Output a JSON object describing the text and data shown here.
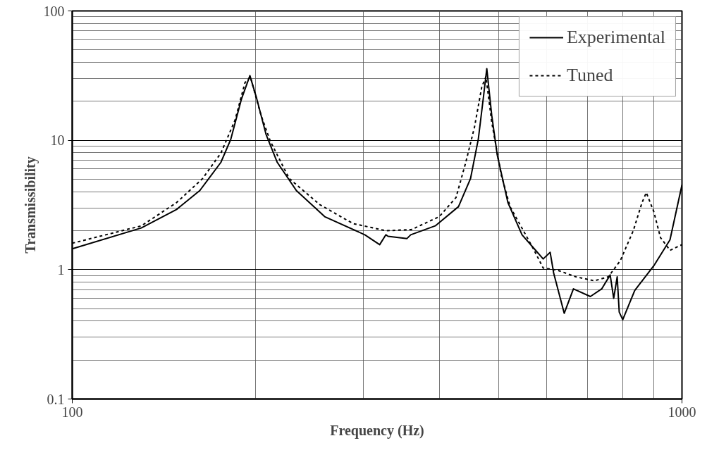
{
  "chart_data": {
    "type": "line",
    "xlabel": "Frequency (Hz)",
    "ylabel": "Transmissibility",
    "log": "xy",
    "grid": true,
    "legend": "top right",
    "marker": "none",
    "xlim": [
      100,
      1000
    ],
    "ylim": [
      0.1,
      100
    ],
    "xticks": [
      100,
      {
        "value": 200,
        "label": null
      },
      {
        "value": 300,
        "label": null
      },
      {
        "value": 400,
        "label": null
      },
      {
        "value": 500,
        "label": null
      },
      {
        "value": 600,
        "label": null
      },
      {
        "value": 700,
        "label": null
      },
      {
        "value": 800,
        "label": null
      },
      {
        "value": 900,
        "label": null
      },
      1000
    ],
    "yticks": [
      0.1,
      {
        "value": 0.2,
        "label": null
      },
      {
        "value": 0.3,
        "label": null
      },
      {
        "value": 0.4,
        "label": null
      },
      {
        "value": 0.5,
        "label": null
      },
      {
        "value": 0.6,
        "label": null
      },
      {
        "value": 0.7,
        "label": null
      },
      {
        "value": 0.8,
        "label": null
      },
      {
        "value": 0.9,
        "label": null
      },
      1,
      {
        "value": 2,
        "label": null
      },
      {
        "value": 3,
        "label": null
      },
      {
        "value": 4,
        "label": null
      },
      {
        "value": 5,
        "label": null
      },
      {
        "value": 6,
        "label": null
      },
      {
        "value": 7,
        "label": null
      },
      {
        "value": 8,
        "label": null
      },
      {
        "value": 9,
        "label": null
      },
      10,
      {
        "value": 20,
        "label": null
      },
      {
        "value": 30,
        "label": null
      },
      {
        "value": 40,
        "label": null
      },
      {
        "value": 50,
        "label": null
      },
      {
        "value": 60,
        "label": null
      },
      {
        "value": 70,
        "label": null
      },
      {
        "value": 80,
        "label": null
      },
      {
        "value": 90,
        "label": null
      },
      100
    ],
    "series": [
      {
        "name": "Experimental",
        "color": "#000000",
        "line_style": "solid",
        "x": [
          100,
          129.8,
          148.3,
          161.9,
          175.3,
          182,
          189.5,
          195.6,
          200.3,
          207.9,
          216.9,
          233.1,
          259.4,
          301.9,
          319.3,
          326.9,
          329.6,
          354,
          359,
          393.9,
          430,
          450,
          463.4,
          472.1,
          478.5,
          487.5,
          497.9,
          518.2,
          546.6,
          592,
          607.9,
          616,
          641,
          663.7,
          707.5,
          738.4,
          762.5,
          772.7,
          783,
          789,
          799.6,
          836.6,
          898.9,
          955.7,
          1000
        ],
        "values": [
          1.45,
          2.1,
          2.92,
          4.09,
          6.75,
          10.2,
          20.9,
          31.6,
          21.7,
          11.1,
          6.75,
          4.09,
          2.57,
          1.86,
          1.56,
          1.86,
          1.81,
          1.74,
          1.86,
          2.18,
          3.07,
          5.06,
          10.2,
          20.9,
          35.8,
          15.6,
          7.65,
          3.3,
          1.86,
          1.21,
          1.36,
          0.94,
          0.46,
          0.71,
          0.62,
          0.71,
          0.91,
          0.6,
          0.88,
          0.47,
          0.41,
          0.69,
          1.07,
          1.7,
          4.52
        ]
      },
      {
        "name": "Tuned",
        "color": "#000000",
        "line_style": "dashed",
        "x": [
          100,
          129.8,
          148.3,
          163.6,
          175.3,
          184.9,
          192,
          196,
          204,
          211.3,
          226.9,
          254.7,
          288.8,
          326.9,
          360,
          400,
          426,
          442,
          456.7,
          469.5,
          477,
          487.5,
          505,
          522.5,
          571,
          592,
          625,
          670,
          718,
          757,
          792,
          832,
          860,
          874,
          899,
          922,
          956,
          1000
        ],
        "values": [
          1.6,
          2.18,
          3.3,
          5.06,
          7.95,
          14.3,
          27.9,
          30.8,
          15.6,
          9.83,
          5.06,
          3.18,
          2.27,
          2.0,
          2.04,
          2.57,
          3.61,
          6.75,
          12.6,
          25.8,
          31,
          13.8,
          5.46,
          3.07,
          1.44,
          1.03,
          0.99,
          0.88,
          0.82,
          0.88,
          1.17,
          2.0,
          3.3,
          3.94,
          2.81,
          1.77,
          1.41,
          1.56
        ]
      }
    ]
  }
}
